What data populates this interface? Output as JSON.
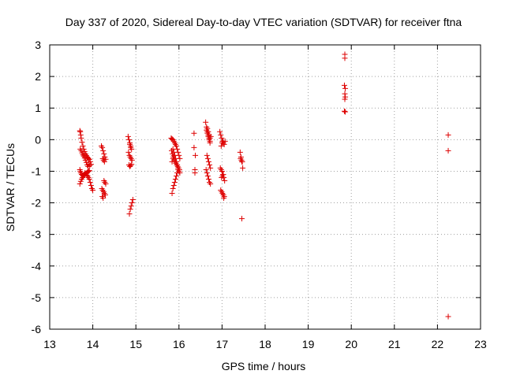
{
  "chart_data": {
    "type": "scatter",
    "title": "Day 337 of 2020, Sidereal Day-to-day VTEC variation (SDTVAR) for receiver ftna",
    "xlabel": "GPS time / hours",
    "ylabel": "SDTVAR / TECUs",
    "xlim": [
      13,
      23
    ],
    "ylim": [
      -6,
      3
    ],
    "xticks": [
      "13",
      "14",
      "15",
      "16",
      "17",
      "18",
      "19",
      "20",
      "21",
      "22",
      "23"
    ],
    "yticks": [
      "-6",
      "-5",
      "-4",
      "-3",
      "-2",
      "-1",
      "0",
      "1",
      "2",
      "3"
    ],
    "grid": true,
    "marker": "+",
    "color": "#dd0000",
    "series": [
      {
        "name": "SDTVAR",
        "x": [
          13.7,
          13.71,
          13.72,
          13.73,
          13.75,
          13.77,
          13.79,
          13.81,
          13.83,
          13.85,
          13.87,
          13.89,
          13.9,
          13.92,
          13.94,
          13.96,
          13.7,
          13.72,
          13.74,
          13.76,
          13.78,
          13.8,
          13.82,
          13.84,
          13.86,
          13.88,
          13.9,
          13.92,
          13.7,
          13.71,
          13.72,
          13.74,
          13.76,
          13.78,
          13.8,
          13.82,
          13.84,
          13.86,
          13.88,
          13.9,
          13.92,
          13.94,
          13.96,
          13.98,
          14.0,
          13.71,
          13.73,
          13.75,
          13.77,
          13.79,
          13.81,
          13.83,
          13.85,
          13.87,
          13.89,
          13.91,
          13.93,
          14.2,
          14.22,
          14.24,
          14.26,
          14.28,
          14.3,
          14.21,
          14.23,
          14.25,
          14.27,
          14.29,
          14.22,
          14.24,
          14.26,
          14.28,
          14.3,
          14.23,
          14.25,
          14.27,
          14.82,
          14.84,
          14.86,
          14.88,
          14.9,
          14.83,
          14.85,
          14.87,
          14.89,
          14.91,
          14.84,
          14.86,
          14.88,
          14.9,
          14.85,
          14.87,
          14.89,
          14.91,
          14.93,
          14.86,
          14.88,
          15.82,
          15.84,
          15.86,
          15.88,
          15.9,
          15.92,
          15.94,
          15.96,
          15.98,
          16.0,
          16.02,
          15.83,
          15.85,
          15.87,
          15.89,
          15.91,
          15.93,
          15.95,
          15.97,
          15.99,
          16.01,
          15.84,
          15.86,
          15.88,
          15.9,
          15.92,
          15.94,
          15.96,
          15.98,
          15.86,
          15.88,
          15.9,
          15.92,
          15.94,
          15.96,
          15.98,
          16.0,
          16.02,
          15.84,
          15.86,
          15.88,
          16.35,
          16.35,
          16.37,
          16.37,
          16.38,
          16.62,
          16.64,
          16.66,
          16.68,
          16.7,
          16.72,
          16.74,
          16.63,
          16.65,
          16.67,
          16.69,
          16.71,
          16.73,
          16.64,
          16.66,
          16.68,
          16.7,
          16.72,
          16.65,
          16.67,
          16.69,
          16.71,
          16.73,
          16.66,
          16.68,
          16.7,
          16.72,
          16.95,
          16.97,
          16.99,
          17.01,
          17.03,
          17.05,
          17.07,
          16.96,
          16.98,
          17.0,
          17.02,
          17.04,
          17.06,
          16.97,
          16.99,
          17.01,
          17.03,
          17.05,
          16.98,
          17.0,
          17.02,
          17.04,
          16.99,
          17.01,
          17.03,
          17.42,
          17.44,
          17.46,
          17.48,
          17.43,
          17.45,
          17.47,
          17.46,
          19.85,
          19.85,
          19.84,
          19.86,
          19.85,
          19.86,
          19.85,
          19.84,
          19.86,
          22.25,
          22.25,
          22.25
        ],
        "y": [
          0.28,
          0.25,
          0.15,
          0.05,
          -0.08,
          -0.2,
          -0.3,
          -0.38,
          -0.45,
          -0.5,
          -0.55,
          -0.58,
          -0.6,
          -0.63,
          -0.7,
          -0.78,
          -1.4,
          -1.32,
          -1.25,
          -1.2,
          -1.15,
          -1.12,
          -1.1,
          -1.08,
          -1.05,
          -1.02,
          -1.0,
          -0.98,
          -0.95,
          -1.0,
          -1.05,
          -1.1,
          -1.12,
          -1.15,
          -1.1,
          -1.05,
          -1.08,
          -1.12,
          -1.15,
          -1.2,
          -1.25,
          -1.35,
          -1.45,
          -1.55,
          -1.6,
          -0.3,
          -0.35,
          -0.42,
          -0.48,
          -0.52,
          -0.58,
          -0.65,
          -0.72,
          -0.8,
          -0.85,
          -0.78,
          -0.82,
          -0.2,
          -0.25,
          -0.35,
          -0.45,
          -0.55,
          -0.62,
          -1.55,
          -1.6,
          -1.65,
          -1.7,
          -1.75,
          -1.8,
          -1.85,
          -1.3,
          -1.35,
          -1.4,
          -0.6,
          -0.65,
          -0.7,
          0.1,
          0.0,
          -0.1,
          -0.2,
          -0.3,
          -0.4,
          -0.5,
          -0.55,
          -0.6,
          -0.65,
          -0.8,
          -0.85,
          -0.82,
          -0.78,
          -2.35,
          -2.2,
          -2.1,
          -2.0,
          -1.9,
          -0.15,
          -0.25,
          0.05,
          0.02,
          0.0,
          -0.05,
          -0.1,
          -0.15,
          -0.2,
          -0.3,
          -0.4,
          -0.5,
          -0.6,
          -0.35,
          -0.45,
          -0.55,
          -0.65,
          -0.7,
          -0.75,
          -0.8,
          -0.85,
          -0.9,
          -0.95,
          -1.7,
          -1.55,
          -1.45,
          -1.35,
          -1.25,
          -1.15,
          -1.05,
          -0.95,
          -0.3,
          -0.4,
          -0.5,
          -0.6,
          -0.7,
          -0.8,
          -0.9,
          -1.0,
          -1.05,
          -0.7,
          -0.6,
          -0.5,
          0.2,
          -0.25,
          -0.95,
          -1.05,
          -0.5,
          0.55,
          0.4,
          0.25,
          0.15,
          0.05,
          -0.05,
          0.1,
          -0.95,
          -1.05,
          -1.15,
          -1.25,
          -1.35,
          -1.4,
          0.3,
          0.2,
          0.1,
          0.0,
          -0.1,
          -0.5,
          -0.6,
          -0.7,
          -0.8,
          -0.9,
          0.35,
          0.25,
          0.15,
          0.05,
          0.25,
          0.15,
          0.05,
          -0.05,
          -0.1,
          -0.15,
          -0.05,
          -0.9,
          -0.95,
          -1.0,
          -1.1,
          -1.2,
          -1.3,
          -1.6,
          -1.65,
          -1.7,
          -1.75,
          -1.8,
          -0.2,
          -0.1,
          -0.05,
          -1.85,
          -1.2,
          -1.15,
          -1.1,
          -0.4,
          -0.55,
          -0.7,
          -0.9,
          -0.6,
          -0.65,
          -0.7,
          -2.5,
          2.7,
          2.58,
          1.72,
          1.62,
          1.45,
          1.35,
          1.28,
          0.9,
          0.88,
          0.15,
          -0.35,
          -5.6
        ]
      }
    ]
  }
}
